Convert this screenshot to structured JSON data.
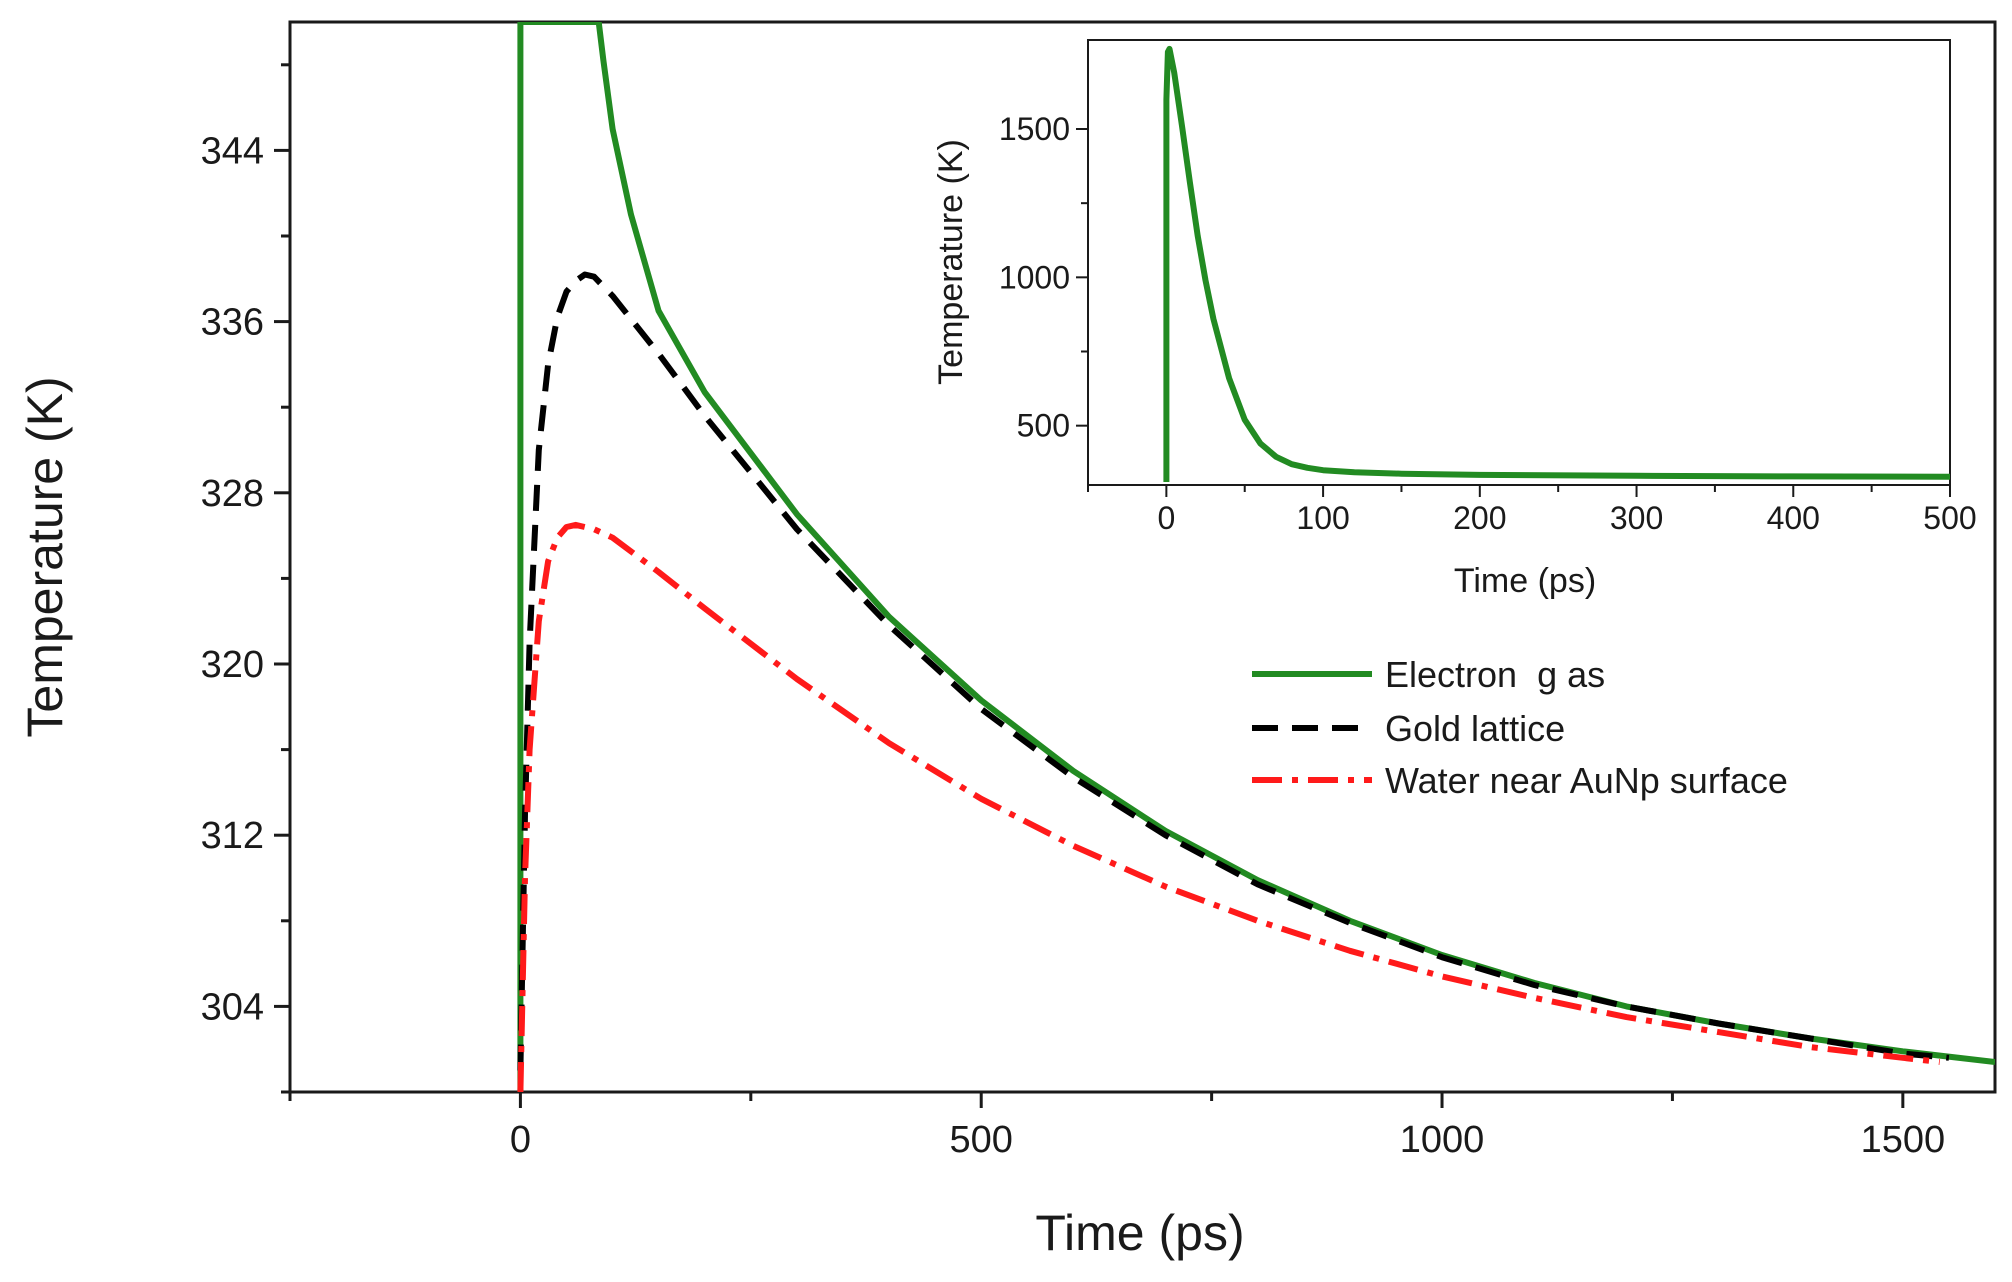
{
  "chart_data": [
    {
      "id": "main",
      "type": "line",
      "xlabel": "Time (ps)",
      "ylabel": "Temperature (K)",
      "xlim": [
        -250,
        1600
      ],
      "ylim": [
        300,
        350
      ],
      "xticks": [
        0,
        500,
        1000,
        1500
      ],
      "xticks_minor": [
        -250,
        250,
        750,
        1250
      ],
      "yticks": [
        304,
        312,
        320,
        328,
        336,
        344
      ],
      "yticks_minor": [
        300,
        308,
        316,
        324,
        332,
        340,
        348
      ],
      "grid": false,
      "legend_position": "right",
      "series": [
        {
          "name": "Electron  g as",
          "color": "#228b22",
          "style": "solid",
          "x": [
            0,
            0,
            85,
            90,
            100,
            120,
            150,
            200,
            300,
            400,
            500,
            600,
            700,
            800,
            900,
            1000,
            1100,
            1200,
            1300,
            1400,
            1500,
            1600
          ],
          "y": [
            300,
            350,
            350,
            348.2,
            345,
            341,
            336.5,
            332.7,
            327,
            322.2,
            318.3,
            315,
            312.2,
            309.9,
            308,
            306.4,
            305.1,
            304,
            303.2,
            302.5,
            301.9,
            301.4
          ]
        },
        {
          "name": "Gold lattice",
          "color": "#000000",
          "style": "dashed",
          "x": [
            0,
            5,
            10,
            20,
            30,
            40,
            50,
            60,
            70,
            80,
            100,
            150,
            200,
            300,
            400,
            500,
            600,
            700,
            800,
            900,
            1000,
            1100,
            1200,
            1300,
            1400,
            1500,
            1550
          ],
          "y": [
            301,
            313,
            321,
            330,
            334,
            336.2,
            337.4,
            337.9,
            338.2,
            338.1,
            337.2,
            334.5,
            331.6,
            326.3,
            321.8,
            317.9,
            314.7,
            312,
            309.7,
            307.9,
            306.3,
            305,
            304,
            303.2,
            302.5,
            301.8,
            301.6
          ]
        },
        {
          "name": "Water near AuNp surface",
          "color": "#ff1a1a",
          "style": "dashdot",
          "x": [
            0,
            5,
            10,
            20,
            30,
            40,
            50,
            60,
            80,
            100,
            150,
            200,
            300,
            400,
            500,
            600,
            700,
            800,
            900,
            1000,
            1100,
            1200,
            1300,
            1400,
            1500,
            1540
          ],
          "y": [
            300,
            310,
            316,
            322,
            324.8,
            325.9,
            326.4,
            326.5,
            326.3,
            325.9,
            324.3,
            322.6,
            319.3,
            316.3,
            313.7,
            311.5,
            309.6,
            308,
            306.6,
            305.4,
            304.4,
            303.5,
            302.8,
            302.1,
            301.6,
            301.4
          ]
        }
      ]
    },
    {
      "id": "inset",
      "type": "line",
      "xlabel": "Time (ps)",
      "ylabel": "Temperature (K)",
      "xlim": [
        -50,
        500
      ],
      "ylim": [
        300,
        1800
      ],
      "xticks": [
        0,
        100,
        200,
        300,
        400,
        500
      ],
      "xticks_minor": [
        -50,
        50,
        150,
        250,
        350,
        450
      ],
      "yticks": [
        500,
        1000,
        1500
      ],
      "yticks_minor": [
        750,
        1250
      ],
      "grid": false,
      "series": [
        {
          "name": "Electron gas",
          "color": "#228b22",
          "style": "solid",
          "x": [
            0,
            0,
            1,
            2,
            5,
            10,
            15,
            20,
            25,
            30,
            40,
            50,
            60,
            70,
            80,
            90,
            100,
            120,
            150,
            200,
            300,
            400,
            500
          ],
          "y": [
            310,
            1600,
            1760,
            1770,
            1690,
            1510,
            1320,
            1140,
            990,
            860,
            660,
            520,
            440,
            395,
            370,
            358,
            350,
            343,
            338,
            334,
            331,
            329,
            328
          ]
        }
      ]
    }
  ]
}
